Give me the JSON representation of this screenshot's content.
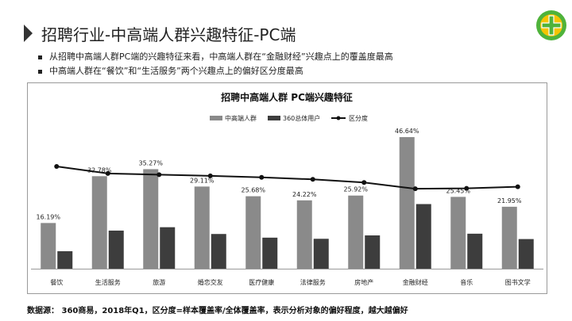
{
  "header": {
    "title": "招聘行业-中高端人群兴趣特征-PC端"
  },
  "bullets": [
    "从招聘中高端人群PC端的兴趣特征来看，中高端人群在“金融财经”兴趣点上的覆盖度最高",
    "中高端人群在“餐饮”和“生活服务”两个兴趣点上的偏好区分度最高"
  ],
  "footer": {
    "source": "数据源： 360商易，2018年Q1，区分度=样本覆盖率/全体覆盖率，表示分析对象的偏好程度，越大越偏好"
  },
  "colors": {
    "series1": "#8a8a8a",
    "series2": "#3d3d3d",
    "line": "#111111",
    "logo_green": "#4fb33b",
    "logo_yellow": "#f5c400"
  },
  "chart_data": {
    "type": "bar",
    "title": "招聘中高端人群 PC端兴趣特征",
    "legend_position": "top-center",
    "categories": [
      "餐饮",
      "生活服务",
      "旅游",
      "婚恋交友",
      "医疗健康",
      "法律服务",
      "房地产",
      "金融财经",
      "音乐",
      "图书文学"
    ],
    "series": [
      {
        "name": "中高端人群",
        "kind": "bar",
        "values": [
          16.19,
          32.78,
          35.27,
          29.11,
          25.68,
          24.22,
          25.92,
          46.64,
          25.45,
          21.95
        ],
        "labels": [
          "16.19%",
          "32.78%",
          "35.27%",
          "29.11%",
          "25.68%",
          "24.22%",
          "25.92%",
          "46.64%",
          "25.45%",
          "21.95%"
        ]
      },
      {
        "name": "360总体用户",
        "kind": "bar",
        "values": [
          6.2,
          13.5,
          14.7,
          12.3,
          11.0,
          10.6,
          11.8,
          22.9,
          12.4,
          10.5
        ]
      },
      {
        "name": "区分度",
        "kind": "line",
        "values": [
          2.61,
          2.43,
          2.4,
          2.37,
          2.33,
          2.28,
          2.2,
          2.04,
          2.05,
          2.09
        ]
      }
    ],
    "ylim": [
      0,
      50
    ],
    "y2lim": [
      0,
      3.6
    ],
    "grid": false
  }
}
